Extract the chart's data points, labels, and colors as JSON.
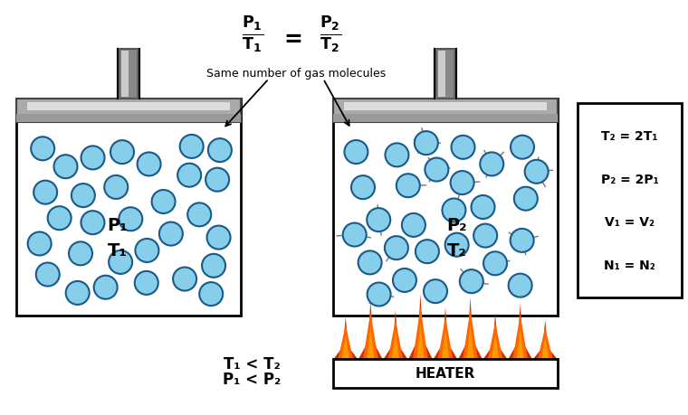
{
  "bg_color": "#ffffff",
  "annotation_text": "Same number of gas molecules",
  "container1": {
    "label_P": "P₁",
    "label_T": "T₁"
  },
  "container2": {
    "label_P": "P₂",
    "label_T": "T₂"
  },
  "molecule_color": "#87CEEB",
  "molecule_edge": "#1a5a8a",
  "legend_lines": [
    "T₂ = 2T₁",
    "P₂ = 2P₁",
    "V₁ = V₂",
    "N₁ = N₂"
  ],
  "bottom_text1": "T₁ < T₂",
  "bottom_text2": "P₁ < P₂",
  "heater_text": "HEATER",
  "flame_color1": "#CC3300",
  "flame_color2": "#FF6600",
  "flame_color3": "#FF9900",
  "piston_dark": "#888888",
  "piston_mid": "#aaaaaa",
  "piston_light": "#dddddd",
  "pipe_dark": "#888888",
  "pipe_light": "#cccccc"
}
